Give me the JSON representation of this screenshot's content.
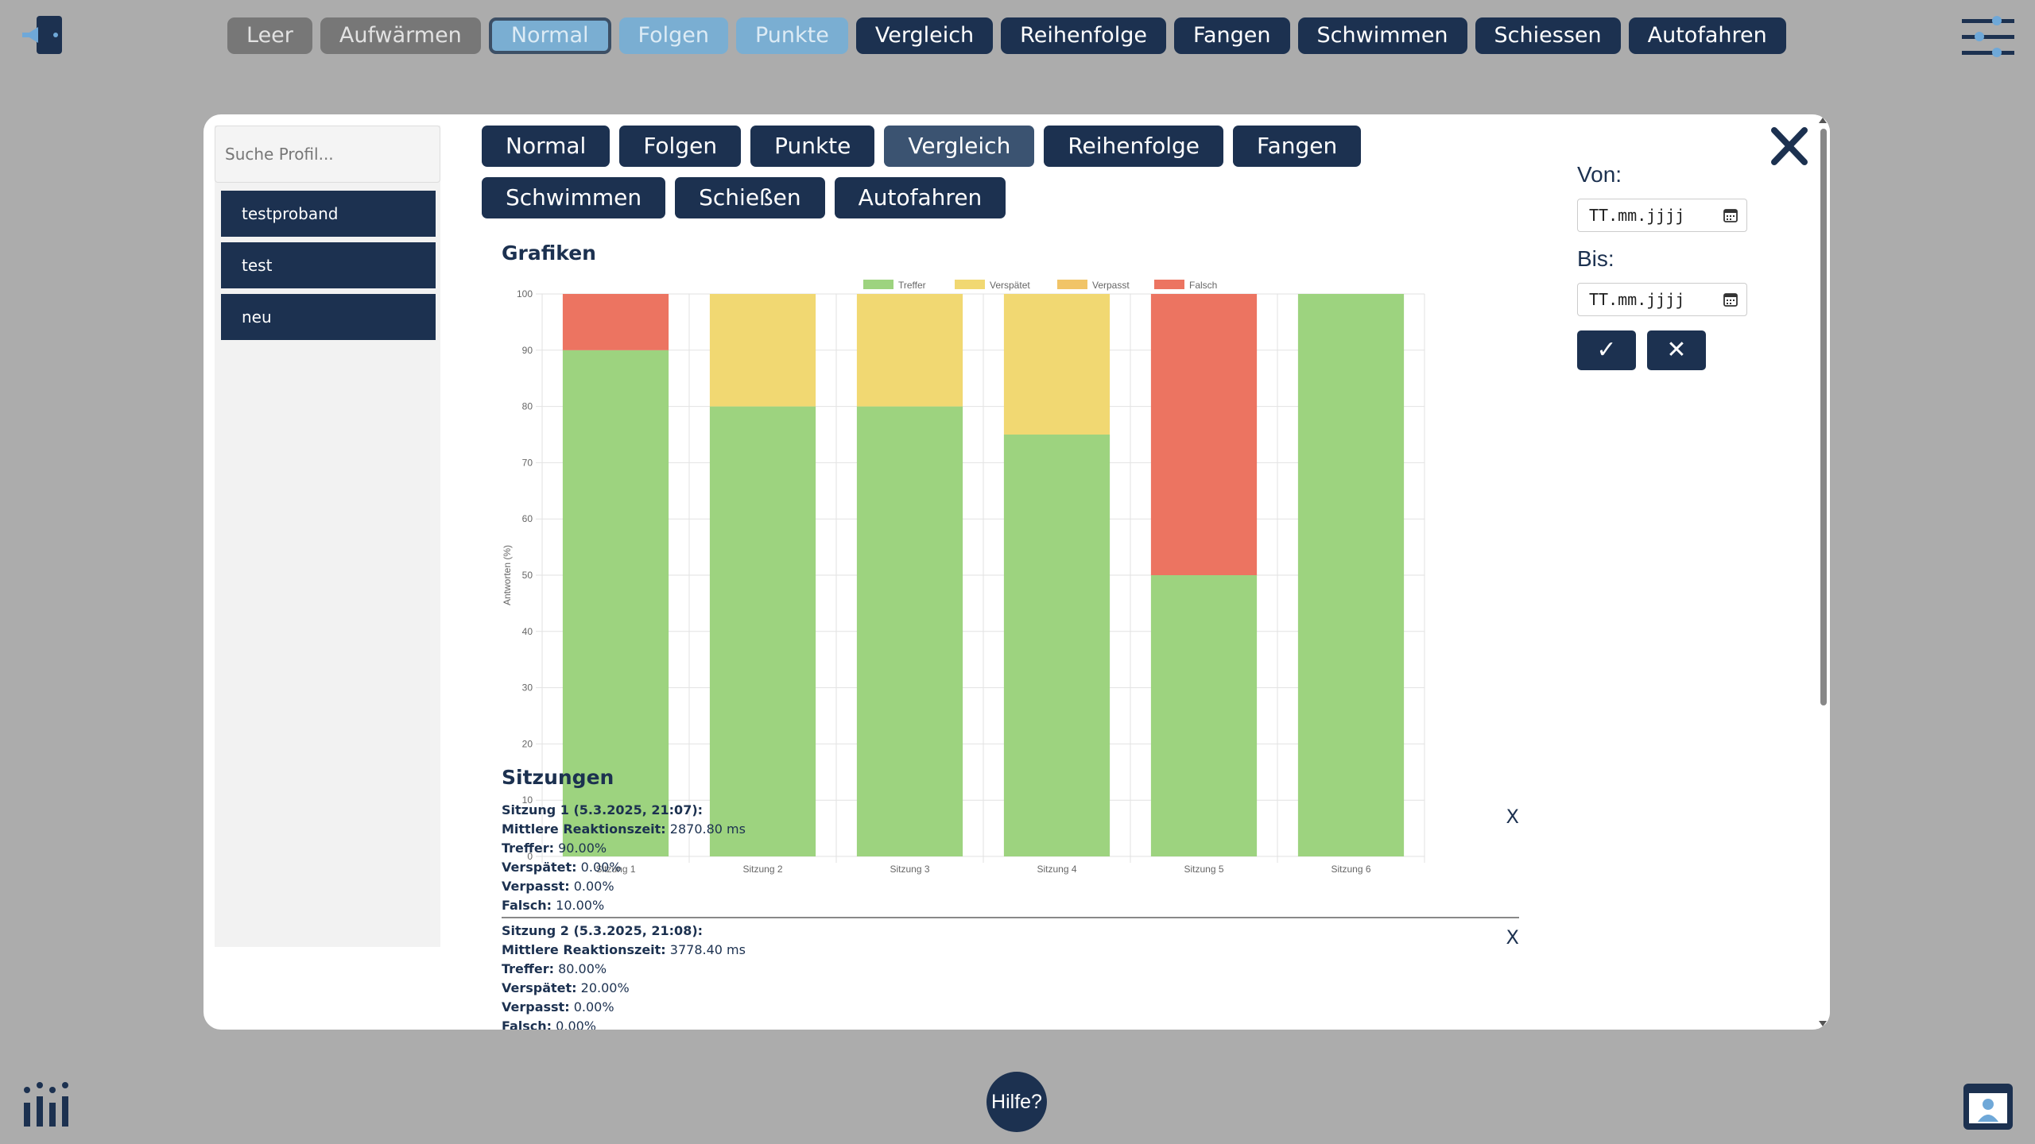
{
  "nav": {
    "items": [
      {
        "label": "Leer",
        "style": "gray"
      },
      {
        "label": "Aufwärmen",
        "style": "gray"
      },
      {
        "label": "Normal",
        "style": "light",
        "active": true
      },
      {
        "label": "Folgen",
        "style": "light"
      },
      {
        "label": "Punkte",
        "style": "light"
      },
      {
        "label": "Vergleich",
        "style": "dark"
      },
      {
        "label": "Reihenfolge",
        "style": "dark"
      },
      {
        "label": "Fangen",
        "style": "dark"
      },
      {
        "label": "Schwimmen",
        "style": "dark"
      },
      {
        "label": "Schiessen",
        "style": "dark"
      },
      {
        "label": "Autofahren",
        "style": "dark"
      }
    ]
  },
  "sidebar": {
    "search_placeholder": "Suche Profil...",
    "profiles": [
      "testproband",
      "test",
      "neu"
    ]
  },
  "modes": {
    "items": [
      {
        "label": "Normal"
      },
      {
        "label": "Folgen"
      },
      {
        "label": "Punkte"
      },
      {
        "label": "Vergleich",
        "active": true
      },
      {
        "label": "Reihenfolge"
      },
      {
        "label": "Fangen"
      },
      {
        "label": "Schwimmen"
      },
      {
        "label": "Schießen"
      },
      {
        "label": "Autofahren"
      }
    ]
  },
  "date_filter": {
    "from_label": "Von:",
    "to_label": "Bis:",
    "from_value": "TT.mm.jjjj",
    "to_value": "TT.mm.jjjj",
    "apply_symbol": "✓",
    "clear_symbol": "✕"
  },
  "graphs_title": "Grafiken",
  "sessions_title": "Sitzungen",
  "help_label": "Hilfe?",
  "colors": {
    "primary": "#1c3150",
    "treffer": "#9dd37f",
    "verspaetet": "#f1d872",
    "verpasst": "#f1c467",
    "falsch": "#ec7461",
    "nav_gray": "#777777",
    "nav_light": "#7aaed2"
  },
  "chart_data": {
    "type": "bar",
    "stacked": true,
    "categories": [
      "Sitzung 1",
      "Sitzung 2",
      "Sitzung 3",
      "Sitzung 4",
      "Sitzung 5",
      "Sitzung 6"
    ],
    "series": [
      {
        "name": "Treffer",
        "color": "#9dd37f",
        "values": [
          90,
          80,
          80,
          75,
          50,
          100
        ]
      },
      {
        "name": "Verspätet",
        "color": "#f1d872",
        "values": [
          0,
          20,
          20,
          25,
          0,
          0
        ]
      },
      {
        "name": "Verpasst",
        "color": "#f1c467",
        "values": [
          0,
          0,
          0,
          0,
          0,
          0
        ]
      },
      {
        "name": "Falsch",
        "color": "#ec7461",
        "values": [
          10,
          0,
          0,
          0,
          50,
          0
        ]
      }
    ],
    "ylabel": "Antworten (%)",
    "ylim": [
      0,
      100
    ],
    "yticks": [
      0,
      10,
      20,
      30,
      40,
      50,
      60,
      70,
      80,
      90,
      100
    ],
    "legend": "top",
    "grid": true
  },
  "sessions": [
    {
      "title": "Sitzung 1 (5.3.2025, 21:07)",
      "reaction_label": "Mittlere Reaktionszeit:",
      "reaction_value": "2870.80 ms",
      "treffer_label": "Treffer:",
      "treffer_value": "90.00%",
      "verspaetet_label": "Verspätet:",
      "verspaetet_value": "0.00%",
      "verpasst_label": "Verpasst:",
      "verpasst_value": "0.00%",
      "falsch_label": "Falsch:",
      "falsch_value": "10.00%",
      "delete": "X"
    },
    {
      "title": "Sitzung 2 (5.3.2025, 21:08)",
      "reaction_label": "Mittlere Reaktionszeit:",
      "reaction_value": "3778.40 ms",
      "treffer_label": "Treffer:",
      "treffer_value": "80.00%",
      "verspaetet_label": "Verspätet:",
      "verspaetet_value": "20.00%",
      "verpasst_label": "Verpasst:",
      "verpasst_value": "0.00%",
      "falsch_label": "Falsch:",
      "falsch_value": "0.00%",
      "delete": "X"
    }
  ]
}
